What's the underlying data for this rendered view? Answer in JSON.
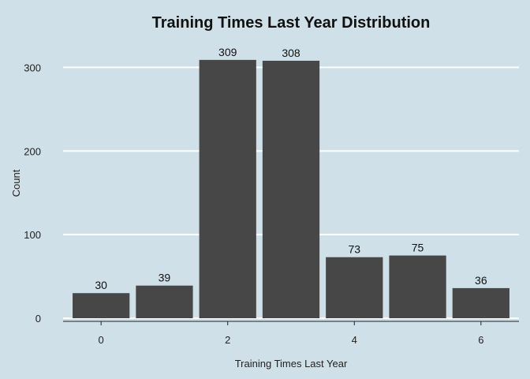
{
  "chart_data": {
    "type": "bar",
    "title": "Training Times Last Year Distribution",
    "xlabel": "Training Times Last Year",
    "ylabel": "Count",
    "x": [
      0,
      1,
      2,
      3,
      4,
      5,
      6
    ],
    "values": [
      30,
      39,
      309,
      308,
      73,
      75,
      36
    ],
    "data_labels": [
      "30",
      "39",
      "309",
      "308",
      "73",
      "75",
      "36"
    ],
    "x_ticks": [
      0,
      2,
      4,
      6
    ],
    "x_tick_labels": [
      "0",
      "2",
      "4",
      "6"
    ],
    "y_ticks": [
      0,
      100,
      200,
      300
    ],
    "y_tick_labels": [
      "0",
      "100",
      "200",
      "300"
    ],
    "ylim": [
      0,
      324
    ],
    "xlim": [
      -0.6,
      6.6
    ],
    "grid": true,
    "colors": {
      "background": "#cfe0e8",
      "bar": "#474747",
      "grid": "#ffffff"
    }
  }
}
